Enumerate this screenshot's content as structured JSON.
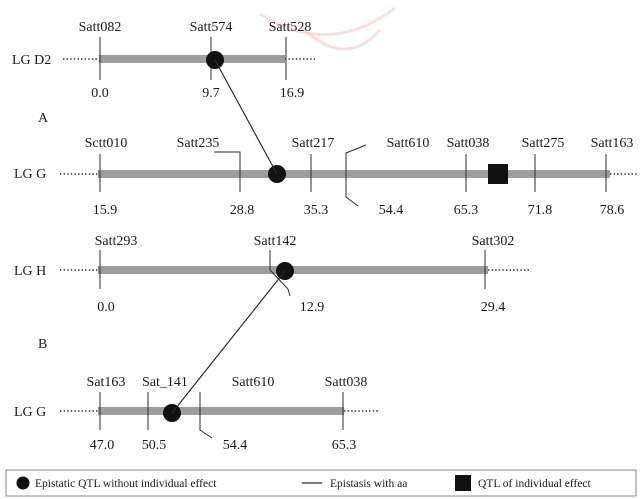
{
  "panels": {
    "a": "A",
    "b": "B"
  },
  "linkage_groups": [
    {
      "id": "d2",
      "label": "LG D2",
      "markers": [
        {
          "name": "Satt082",
          "pos": "0.0"
        },
        {
          "name": "Satt574",
          "pos": "9.7"
        },
        {
          "name": "Satt528",
          "pos": "16.9"
        }
      ],
      "epistatic_qtl_between": [
        "Satt082",
        "Satt528"
      ]
    },
    {
      "id": "g_a",
      "label": "LG G",
      "markers": [
        {
          "name": "Sctt010",
          "pos": "15.9"
        },
        {
          "name": "Satt235",
          "pos": "28.8"
        },
        {
          "name": "Satt217",
          "pos": "35.3"
        },
        {
          "name": "Satt610",
          "pos": "54.4"
        },
        {
          "name": "Satt038",
          "pos": "65.3"
        },
        {
          "name": "Satt275",
          "pos": "71.8"
        },
        {
          "name": "Satt163",
          "pos": "78.6"
        }
      ],
      "epistatic_qtl_between": [
        "Satt235",
        "Satt217"
      ],
      "individual_qtl_between": [
        "Satt038",
        "Satt275"
      ]
    },
    {
      "id": "h",
      "label": "LG H",
      "markers": [
        {
          "name": "Satt293",
          "pos": "0.0"
        },
        {
          "name": "Satt142",
          "pos": "12.9"
        },
        {
          "name": "Satt302",
          "pos": "29.4"
        }
      ],
      "epistatic_qtl_between": [
        "Satt142"
      ]
    },
    {
      "id": "g_b",
      "label": "LG G",
      "markers": [
        {
          "name": "Sat163",
          "pos": "47.0"
        },
        {
          "name": "Sat_141",
          "pos": "50.5"
        },
        {
          "name": "Satt610",
          "pos": "54.4"
        },
        {
          "name": "Satt038",
          "pos": "65.3"
        }
      ],
      "epistatic_qtl_between": [
        "Sat_141",
        "Satt610"
      ]
    }
  ],
  "epistatic_interactions": [
    {
      "from": "LG D2 Satt574 region",
      "to": "LG G Satt235–Satt217 region",
      "panel": "A"
    },
    {
      "from": "LG H Satt142 region",
      "to": "LG G Sat_141–Satt610 region",
      "panel": "B"
    }
  ],
  "legend": {
    "epistatic": "Epistatic QTL without individual effect",
    "aa": "Epistasis with aa",
    "individual": "QTL of individual effect"
  },
  "colors": {
    "chromosome": "#9d9d9d",
    "marker_symbol": "#111111"
  }
}
